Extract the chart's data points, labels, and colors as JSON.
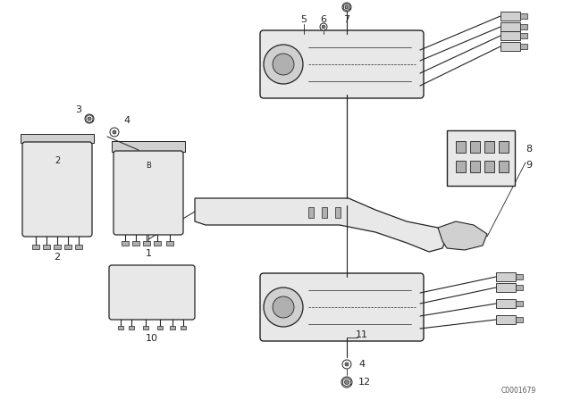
{
  "background_color": "#ffffff",
  "line_color": "#222222",
  "catalog_number": "C0001679",
  "fig_w": 6.4,
  "fig_h": 4.48,
  "dpi": 100
}
